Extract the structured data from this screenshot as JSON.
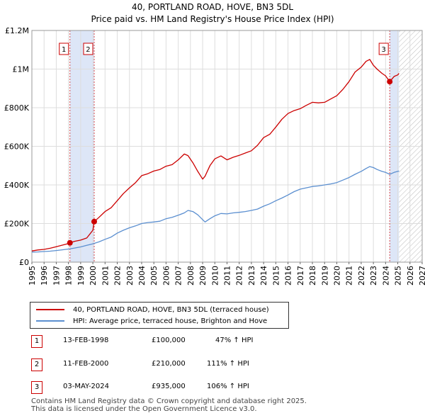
{
  "chart_data": {
    "type": "line",
    "title": "40, PORTLAND ROAD, HOVE, BN3 5DL",
    "subtitle": "Price paid vs. HM Land Registry's House Price Index (HPI)",
    "xlabel": "",
    "ylabel": "",
    "xlim": [
      1995,
      2027
    ],
    "ylim": [
      0,
      1200000
    ],
    "y_ticks": [
      {
        "value": 0,
        "label": "£0"
      },
      {
        "value": 200000,
        "label": "£200K"
      },
      {
        "value": 400000,
        "label": "£400K"
      },
      {
        "value": 600000,
        "label": "£600K"
      },
      {
        "value": 800000,
        "label": "£800K"
      },
      {
        "value": 1000000,
        "label": "£1M"
      },
      {
        "value": 1200000,
        "label": "£1.2M"
      }
    ],
    "x_ticks": [
      "1995",
      "1996",
      "1997",
      "1998",
      "1999",
      "2000",
      "2001",
      "2002",
      "2003",
      "2004",
      "2005",
      "2006",
      "2007",
      "2008",
      "2009",
      "2010",
      "2011",
      "2012",
      "2013",
      "2014",
      "2015",
      "2016",
      "2017",
      "2018",
      "2019",
      "2020",
      "2021",
      "2022",
      "2023",
      "2024",
      "2025",
      "2026",
      "2027"
    ],
    "grid": true,
    "shaded_periods": [
      {
        "start": 1998.12,
        "end": 2000.11,
        "color": "#dde6f7"
      },
      {
        "start": 2024.34,
        "end": 2025.1,
        "color": "#dde6f7"
      }
    ],
    "hatched_region": {
      "start": 2025.1,
      "end": 2027
    },
    "series": [
      {
        "name": "40, PORTLAND ROAD, HOVE, BN3 5DL (terraced house)",
        "color": "#cc0000",
        "x": [
          1995.0,
          1995.5,
          1996.0,
          1996.5,
          1997.0,
          1997.5,
          1998.0,
          1998.12,
          1998.5,
          1999.0,
          1999.5,
          2000.0,
          2000.11,
          2000.5,
          2001.0,
          2001.5,
          2002.0,
          2002.5,
          2003.0,
          2003.5,
          2004.0,
          2004.5,
          2005.0,
          2005.5,
          2006.0,
          2006.5,
          2007.0,
          2007.5,
          2007.8,
          2008.2,
          2008.6,
          2009.0,
          2009.2,
          2009.6,
          2010.0,
          2010.5,
          2011.0,
          2011.5,
          2012.0,
          2012.5,
          2013.0,
          2013.5,
          2014.0,
          2014.5,
          2015.0,
          2015.5,
          2016.0,
          2016.5,
          2017.0,
          2017.5,
          2018.0,
          2018.5,
          2019.0,
          2019.5,
          2020.0,
          2020.5,
          2021.0,
          2021.5,
          2022.0,
          2022.4,
          2022.7,
          2023.0,
          2023.3,
          2023.7,
          2024.0,
          2024.34,
          2024.7,
          2025.0,
          2025.1
        ],
        "y": [
          58000,
          63000,
          66000,
          72000,
          80000,
          88000,
          96000,
          100000,
          108000,
          114000,
          125000,
          165000,
          210000,
          232000,
          262000,
          282000,
          318000,
          355000,
          385000,
          412000,
          448000,
          458000,
          472000,
          480000,
          497000,
          505000,
          530000,
          560000,
          552000,
          515000,
          470000,
          430000,
          445000,
          500000,
          535000,
          550000,
          530000,
          543000,
          553000,
          565000,
          577000,
          605000,
          645000,
          662000,
          700000,
          740000,
          770000,
          785000,
          795000,
          812000,
          828000,
          825000,
          828000,
          845000,
          862000,
          895000,
          935000,
          985000,
          1010000,
          1040000,
          1050000,
          1020000,
          1000000,
          978000,
          965000,
          935000,
          962000,
          970000,
          978000
        ]
      },
      {
        "name": "HPI: Average price, terraced house, Brighton and Hove",
        "color": "#5b8fd0",
        "x": [
          1995.0,
          1995.5,
          1996.0,
          1996.5,
          1997.0,
          1997.5,
          1998.0,
          1998.5,
          1999.0,
          1999.5,
          2000.0,
          2000.5,
          2001.0,
          2001.5,
          2002.0,
          2002.5,
          2003.0,
          2003.5,
          2004.0,
          2004.5,
          2005.0,
          2005.5,
          2006.0,
          2006.5,
          2007.0,
          2007.5,
          2007.8,
          2008.2,
          2008.6,
          2009.0,
          2009.2,
          2009.6,
          2010.0,
          2010.5,
          2011.0,
          2011.5,
          2012.0,
          2012.5,
          2013.0,
          2013.5,
          2014.0,
          2014.5,
          2015.0,
          2015.5,
          2016.0,
          2016.5,
          2017.0,
          2017.5,
          2018.0,
          2018.5,
          2019.0,
          2019.5,
          2020.0,
          2020.5,
          2021.0,
          2021.5,
          2022.0,
          2022.4,
          2022.7,
          2023.0,
          2023.3,
          2023.7,
          2024.0,
          2024.34,
          2024.7,
          2025.0,
          2025.1
        ],
        "y": [
          52000,
          53000,
          55000,
          57000,
          60000,
          64000,
          68000,
          73000,
          79000,
          87000,
          95000,
          105000,
          118000,
          130000,
          150000,
          165000,
          178000,
          188000,
          200000,
          205000,
          208000,
          212000,
          225000,
          232000,
          243000,
          255000,
          268000,
          262000,
          245000,
          220000,
          208000,
          225000,
          240000,
          252000,
          250000,
          255000,
          258000,
          262000,
          268000,
          275000,
          290000,
          302000,
          318000,
          332000,
          348000,
          365000,
          378000,
          385000,
          392000,
          395000,
          400000,
          405000,
          412000,
          425000,
          438000,
          455000,
          470000,
          485000,
          495000,
          490000,
          480000,
          470000,
          465000,
          455000,
          465000,
          470000,
          472000
        ]
      }
    ],
    "sales": [
      {
        "marker": "1",
        "x": 1998.12,
        "y": 100000,
        "date": "13-FEB-1998",
        "price": "£100,000",
        "hpi": "47% ↑ HPI"
      },
      {
        "marker": "2",
        "x": 2000.11,
        "y": 210000,
        "date": "11-FEB-2000",
        "price": "£210,000",
        "hpi": "111% ↑ HPI"
      },
      {
        "marker": "3",
        "x": 2024.34,
        "y": 935000,
        "date": "03-MAY-2024",
        "price": "£935,000",
        "hpi": "106% ↑ HPI"
      }
    ]
  },
  "legend": {
    "property_label": "40, PORTLAND ROAD, HOVE, BN3 5DL (terraced house)",
    "hpi_label": "HPI: Average price, terraced house, Brighton and Hove"
  },
  "table": [
    {
      "marker": "1",
      "date": "13-FEB-1998",
      "price": "£100,000",
      "hpi": "47% ↑ HPI"
    },
    {
      "marker": "2",
      "date": "11-FEB-2000",
      "price": "£210,000",
      "hpi": "111% ↑ HPI"
    },
    {
      "marker": "3",
      "date": "03-MAY-2024",
      "price": "£935,000",
      "hpi": "106% ↑ HPI"
    }
  ],
  "footer": {
    "line1": "Contains HM Land Registry data © Crown copyright and database right 2025.",
    "line2": "This data is licensed under the Open Government Licence v3.0."
  },
  "colors": {
    "property": "#cc0000",
    "hpi": "#5b8fd0",
    "grid": "#dddddd",
    "shade": "#dde6f7"
  }
}
